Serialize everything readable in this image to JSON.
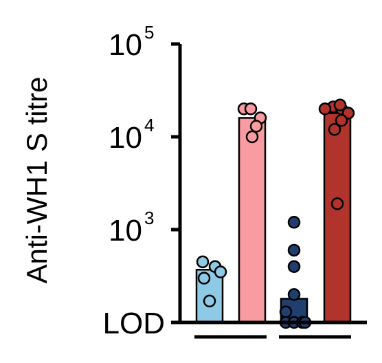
{
  "chart_data": {
    "type": "bar",
    "ylabel": "Anti-WH1 S titre",
    "yscale": "log",
    "ylim": [
      100,
      100000
    ],
    "yticks": [
      {
        "value": 100,
        "label": "LOD",
        "exp": ""
      },
      {
        "value": 1000,
        "label": "10",
        "exp": "3"
      },
      {
        "value": 10000,
        "label": "10",
        "exp": "4"
      },
      {
        "value": 100000,
        "label": "10",
        "exp": "5"
      }
    ],
    "categories": [
      "",
      "",
      "",
      ""
    ],
    "bars": [
      {
        "value": 370,
        "color": "#8ecae6"
      },
      {
        "value": 16000,
        "color": "#f99ca1"
      },
      {
        "value": 180,
        "color": "#213f6e"
      },
      {
        "value": 18000,
        "color": "#b0342c"
      }
    ],
    "points": [
      [
        450,
        400,
        350,
        300,
        170
      ],
      [
        20000,
        16000,
        13000,
        10000,
        20000
      ],
      [
        1200,
        600,
        400,
        200,
        130,
        100,
        100,
        100,
        100
      ],
      [
        21000,
        20000,
        18000,
        15000,
        12000,
        20000,
        22000,
        1900
      ]
    ],
    "point_colors": [
      "#8ecae6",
      "#f99ca1",
      "#213f6e",
      "#b0342c"
    ],
    "grid": false
  }
}
